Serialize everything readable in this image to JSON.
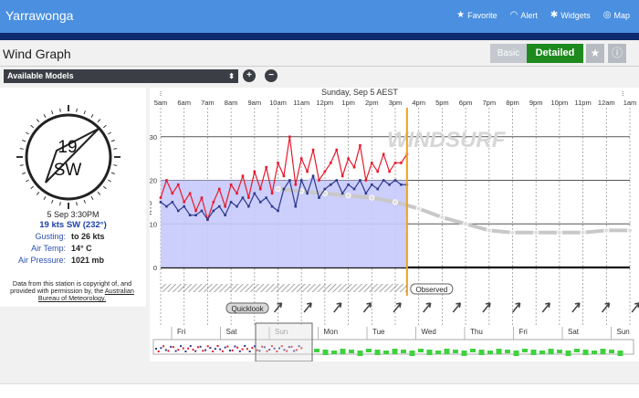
{
  "header": {
    "site_title": "Yarrawonga",
    "nav": [
      {
        "label": "Favorite",
        "icon": "star-icon"
      },
      {
        "label": "Alert",
        "icon": "wifi-icon"
      },
      {
        "label": "Widgets",
        "icon": "gear-icon"
      },
      {
        "label": "Map",
        "icon": "compass-icon"
      }
    ]
  },
  "page": {
    "title": "Wind Graph",
    "mode_basic": "Basic",
    "mode_detailed": "Detailed",
    "models_select": "Available Models"
  },
  "station": {
    "compass_speed": "19",
    "compass_dir": "SW",
    "observed_time": "5 Sep 3:30PM",
    "wind_summary": "19 kts SW (232°)",
    "gusting_label": "Gusting:",
    "gusting_value": "to 26 kts",
    "airtemp_label": "Air Temp:",
    "airtemp_value": "14° C",
    "pressure_label": "Air Pressure:",
    "pressure_value": "1021 mb",
    "copyright_text": "Data from this station is copyright of, and provided with permission by, the",
    "copyright_link": "Australian Bureau of Meteorology."
  },
  "chart_data": {
    "type": "line",
    "title": "Sunday, Sep 5 AEST",
    "ylabel": "KTS",
    "ylim": [
      0,
      31
    ],
    "yticks": [
      0,
      10,
      20,
      30
    ],
    "grid": true,
    "x_labels": [
      "5am",
      "6am",
      "7am",
      "8am",
      "9am",
      "10am",
      "11am",
      "12pm",
      "1pm",
      "2pm",
      "3pm",
      "4pm",
      "5pm",
      "6pm",
      "7pm",
      "8pm",
      "9pm",
      "10pm",
      "11pm",
      "12am",
      "1am"
    ],
    "x_range_hours": [
      5,
      25
    ],
    "now_hour": 15.5,
    "watermark": "WINDSURF",
    "quicklook_label": "Quicklook",
    "observed_label": "Observed",
    "gust_color": "#e8192c",
    "speed_color": "#2e3a8c",
    "fill_color": "#c7c9fb",
    "forecast_color": "#c8c8c8",
    "now_color": "#f0a020",
    "series": [
      {
        "name": "gust",
        "x": [
          5.0,
          5.25,
          5.5,
          5.75,
          6.0,
          6.25,
          6.5,
          6.75,
          7.0,
          7.25,
          7.5,
          7.75,
          8.0,
          8.25,
          8.5,
          8.75,
          9.0,
          9.25,
          9.5,
          9.75,
          10.0,
          10.25,
          10.5,
          10.75,
          11.0,
          11.25,
          11.5,
          11.75,
          12.0,
          12.25,
          12.5,
          12.75,
          13.0,
          13.25,
          13.5,
          13.75,
          14.0,
          14.25,
          14.5,
          14.75,
          15.0,
          15.25,
          15.5
        ],
        "values": [
          16,
          20,
          17,
          19,
          15,
          17,
          13,
          16,
          11,
          15,
          18,
          14,
          19,
          17,
          21,
          16,
          22,
          18,
          23,
          17,
          24,
          21,
          30,
          19,
          25,
          22,
          27,
          20,
          22,
          24,
          27,
          21,
          25,
          23,
          28,
          20,
          24,
          22,
          26,
          22,
          24,
          24,
          26
        ]
      },
      {
        "name": "speed",
        "x": [
          5.0,
          5.25,
          5.5,
          5.75,
          6.0,
          6.25,
          6.5,
          6.75,
          7.0,
          7.25,
          7.5,
          7.75,
          8.0,
          8.25,
          8.5,
          8.75,
          9.0,
          9.25,
          9.5,
          9.75,
          10.0,
          10.25,
          10.5,
          10.75,
          11.0,
          11.25,
          11.5,
          11.75,
          12.0,
          12.25,
          12.5,
          12.75,
          13.0,
          13.25,
          13.5,
          13.75,
          14.0,
          14.25,
          14.5,
          14.75,
          15.0,
          15.25,
          15.5
        ],
        "values": [
          15,
          14,
          15,
          13,
          14,
          12,
          12,
          13,
          11,
          13,
          14,
          12,
          15,
          14,
          16,
          14,
          17,
          15,
          16,
          14,
          13,
          18,
          20,
          14,
          20,
          17,
          21,
          16,
          18,
          19,
          20,
          17,
          19,
          18,
          20,
          17,
          19,
          18,
          20,
          19,
          20,
          19,
          19
        ]
      },
      {
        "name": "forecast",
        "x": [
          10,
          11,
          12,
          13,
          14,
          15,
          16,
          17,
          18,
          19,
          20,
          21,
          22,
          23,
          24,
          25
        ],
        "values": [
          18,
          17.5,
          17,
          16.5,
          16,
          15,
          13.5,
          11.5,
          10,
          8.5,
          8,
          8,
          8,
          8,
          8.5,
          8.5
        ]
      }
    ],
    "direction_arrows_count": 16,
    "days_strip": [
      "Fri",
      "Sat",
      "Sun",
      "Mon",
      "Tue",
      "Wed",
      "Thu",
      "Fri",
      "Sat",
      "Sun"
    ]
  }
}
